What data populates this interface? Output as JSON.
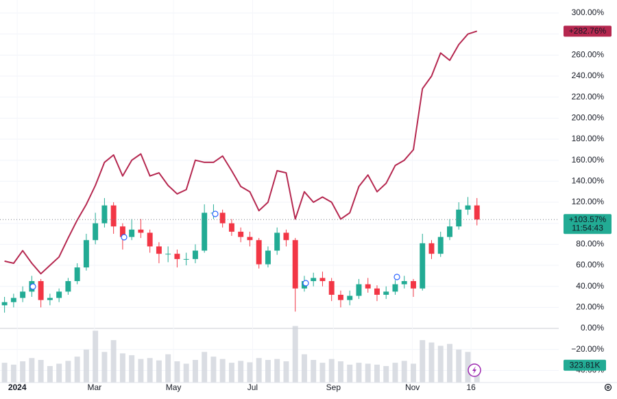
{
  "chart_data": {
    "type": "candlestick",
    "xlim": [
      -0.5,
      61
    ],
    "xticks": [
      {
        "value": 1.4,
        "label": "2024"
      },
      {
        "value": 9.9,
        "label": "Mar"
      },
      {
        "value": 18.6,
        "label": "May"
      },
      {
        "value": 27.3,
        "label": "Jul"
      },
      {
        "value": 36.2,
        "label": "Sep"
      },
      {
        "value": 44.9,
        "label": "Nov"
      },
      {
        "value": 51.35,
        "label": "16"
      }
    ],
    "ylim": [
      -51.5,
      312.4
    ],
    "yticks": [
      {
        "value": 300,
        "label": "300.00%"
      },
      {
        "value": 280,
        "label": "280.00%"
      },
      {
        "value": 260,
        "label": "260.00%"
      },
      {
        "value": 240,
        "label": "240.00%"
      },
      {
        "value": 220,
        "label": "220.00%"
      },
      {
        "value": 200,
        "label": "200.00%"
      },
      {
        "value": 180,
        "label": "180.00%"
      },
      {
        "value": 160,
        "label": "160.00%"
      },
      {
        "value": 140,
        "label": "140.00%"
      },
      {
        "value": 120,
        "label": "120.00%"
      },
      {
        "value": 100,
        "label": "100.00%"
      },
      {
        "value": 80,
        "label": "80.00%"
      },
      {
        "value": 60,
        "label": "60.00%"
      },
      {
        "value": 40,
        "label": "40.00%"
      },
      {
        "value": 20,
        "label": "20.00%"
      },
      {
        "value": 0,
        "label": "0.00%"
      },
      {
        "value": -20,
        "label": "−20.00%"
      },
      {
        "value": -40,
        "label": "−40.00%"
      }
    ],
    "grid": true,
    "candles": {
      "up_color": "#22ab94",
      "down_color": "#f23645",
      "open": [
        22,
        25,
        29,
        35,
        45,
        27,
        29,
        35,
        45,
        58,
        84,
        100,
        117,
        97,
        87,
        94,
        91,
        78,
        71,
        71,
        66,
        66,
        74,
        110,
        110,
        100,
        92,
        87,
        84,
        61,
        74,
        91,
        84,
        38,
        45,
        48,
        45,
        32,
        27,
        31,
        42,
        38,
        32,
        35,
        42,
        45,
        38,
        81,
        71,
        87,
        97,
        113,
        117
      ],
      "high": [
        30,
        33,
        40,
        50,
        47,
        33,
        38,
        48,
        62,
        90,
        110,
        124,
        120,
        100,
        104,
        104,
        94,
        82,
        78,
        75,
        72,
        80,
        118,
        118,
        113,
        104,
        96,
        92,
        86,
        78,
        96,
        94,
        86,
        50,
        53,
        54,
        48,
        36,
        36,
        47,
        48,
        41,
        40,
        46,
        50,
        47,
        90,
        84,
        92,
        104,
        120,
        125,
        124
      ],
      "low": [
        15,
        20,
        25,
        30,
        20,
        22,
        25,
        32,
        42,
        55,
        80,
        96,
        90,
        75,
        84,
        86,
        72,
        62,
        63,
        58,
        60,
        62,
        72,
        104,
        96,
        88,
        82,
        78,
        57,
        58,
        70,
        78,
        16,
        35,
        40,
        40,
        26,
        20,
        22,
        28,
        34,
        26,
        28,
        32,
        38,
        30,
        36,
        66,
        68,
        84,
        94,
        108,
        98
      ],
      "close": [
        25,
        29,
        35,
        45,
        27,
        29,
        35,
        45,
        58,
        84,
        100,
        117,
        97,
        87,
        94,
        91,
        78,
        71,
        71,
        66,
        66,
        74,
        110,
        110,
        100,
        92,
        87,
        84,
        61,
        74,
        91,
        84,
        38,
        45,
        48,
        45,
        32,
        27,
        31,
        42,
        38,
        32,
        35,
        42,
        45,
        38,
        81,
        71,
        87,
        97,
        113,
        117,
        103.57
      ],
      "last_label": "+103.57%",
      "countdown": "11:54:43"
    },
    "series": [
      {
        "color": "#b5274f",
        "values": [
          64,
          62,
          74,
          62,
          52,
          60,
          68,
          86,
          103,
          118,
          136,
          158,
          165,
          145,
          160,
          166,
          145,
          148,
          136,
          128,
          132,
          160,
          158,
          158,
          164,
          150,
          135,
          130,
          112,
          120,
          150,
          148,
          104,
          130,
          120,
          125,
          120,
          104,
          110,
          135,
          146,
          130,
          138,
          155,
          160,
          170,
          228,
          240,
          262,
          255,
          270,
          280,
          282.76
        ],
        "last_label": "+282.76%"
      }
    ],
    "volume": {
      "color": "#d1d4dc",
      "ylim": [
        0,
        1600000
      ],
      "values": [
        420000,
        380000,
        450000,
        520000,
        480000,
        350000,
        400000,
        460000,
        550000,
        700000,
        1100000,
        650000,
        900000,
        620000,
        580000,
        500000,
        520000,
        470000,
        600000,
        450000,
        400000,
        480000,
        650000,
        550000,
        500000,
        420000,
        460000,
        430000,
        520000,
        480000,
        500000,
        450000,
        1200000,
        600000,
        480000,
        420000,
        500000,
        450000,
        380000,
        420000,
        400000,
        380000,
        350000,
        420000,
        460000,
        400000,
        900000,
        850000,
        780000,
        820000,
        700000,
        650000,
        323810
      ],
      "last_label": "323.81K"
    }
  }
}
